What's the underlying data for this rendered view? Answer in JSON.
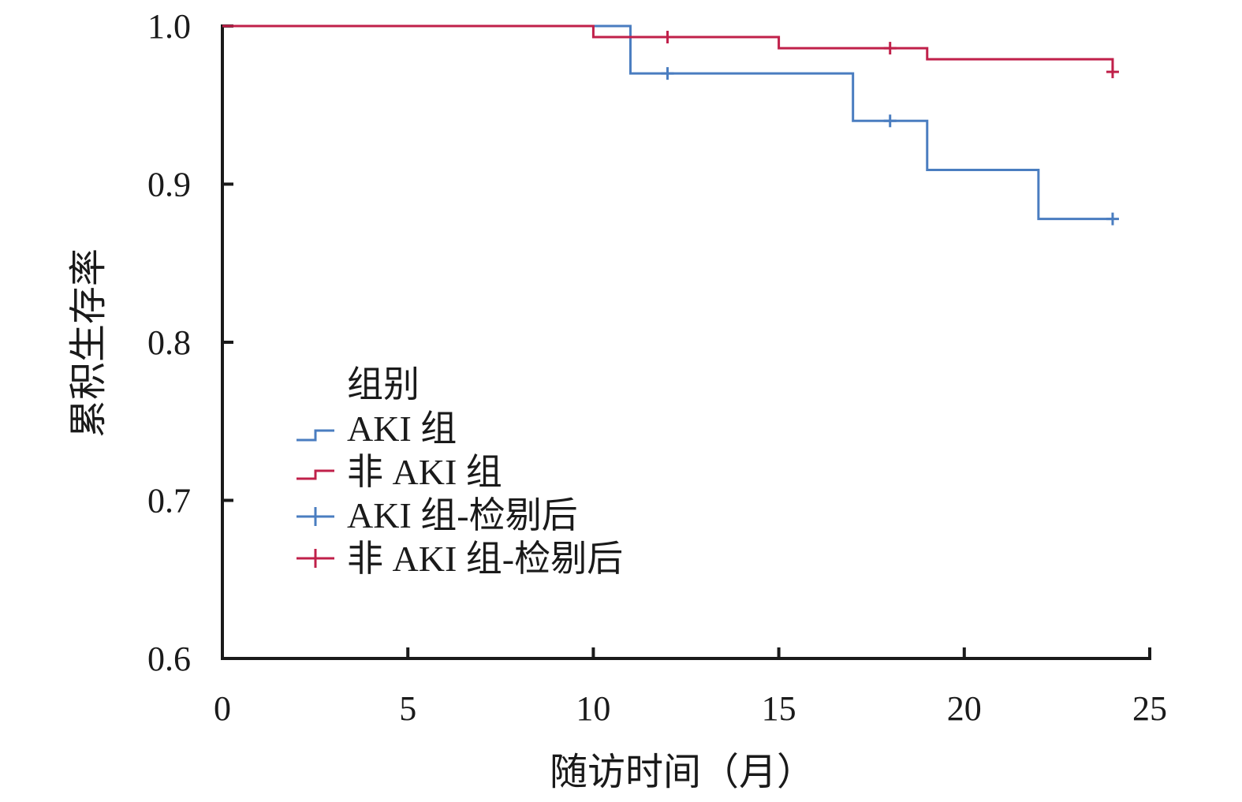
{
  "chart_data": {
    "type": "line",
    "subtype": "kaplan-meier step curve",
    "xlabel": "随访时间（月）",
    "ylabel": "累积生存率",
    "xlim": [
      0,
      25
    ],
    "ylim": [
      0.6,
      1.0
    ],
    "xticks": [
      "0",
      "5",
      "10",
      "15",
      "20",
      "25"
    ],
    "yticks": [
      "0.6",
      "0.7",
      "0.8",
      "0.9",
      "1.0"
    ],
    "grid": false,
    "legend": {
      "title": "组别",
      "placement": "center-left",
      "entries": [
        "AKI 组",
        "非 AKI 组",
        "AKI 组-检剔后",
        "非 AKI 组-检剔后"
      ]
    },
    "series": [
      {
        "name": "AKI 组",
        "color": "#4a7dc0",
        "x": [
          0,
          11,
          17,
          19,
          22,
          24
        ],
        "y": [
          1.0,
          0.97,
          0.94,
          0.909,
          0.878,
          0.878
        ],
        "censored": [
          [
            12,
            0.97
          ],
          [
            18,
            0.94
          ],
          [
            24,
            0.878
          ]
        ]
      },
      {
        "name": "非 AKI 组",
        "color": "#c0204a",
        "x": [
          0,
          10,
          15,
          19,
          24
        ],
        "y": [
          1.0,
          0.993,
          0.986,
          0.979,
          0.971
        ],
        "censored": [
          [
            12,
            0.993
          ],
          [
            18,
            0.986
          ],
          [
            24,
            0.971
          ]
        ]
      }
    ]
  }
}
